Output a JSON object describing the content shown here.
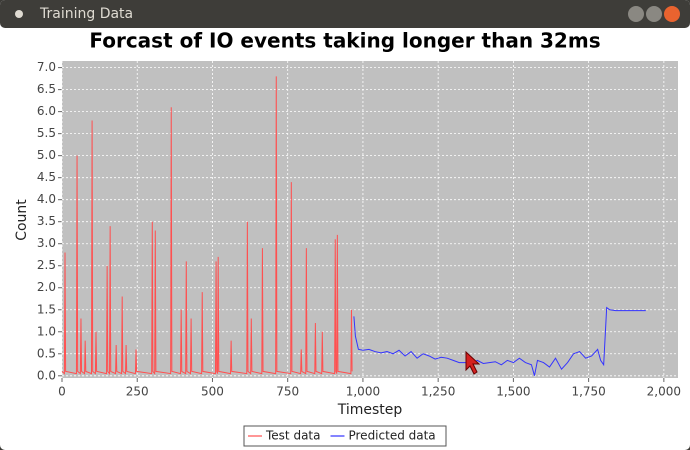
{
  "window": {
    "title": "Training Data"
  },
  "chart_data": {
    "type": "line",
    "title": "Forcast of IO events taking longer than 32ms",
    "xlabel": "Timestep",
    "ylabel": "Count",
    "xlim": [
      0,
      2047
    ],
    "ylim": [
      -0.05,
      7.15
    ],
    "xticks": [
      0,
      250,
      500,
      750,
      {
        "value": 1000,
        "label": "1,000"
      },
      {
        "value": 1250,
        "label": "1,250"
      },
      {
        "value": 1500,
        "label": "1,500"
      },
      {
        "value": 1750,
        "label": "1,750"
      },
      {
        "value": 2000,
        "label": "2,000"
      }
    ],
    "yticks": [
      {
        "value": 0,
        "label": "0.0"
      },
      0.5,
      {
        "value": 1,
        "label": "1.0"
      },
      1.5,
      {
        "value": 2,
        "label": "2.0"
      },
      2.5,
      {
        "value": 3,
        "label": "3.0"
      },
      3.5,
      {
        "value": 4,
        "label": "4.0"
      },
      4.5,
      {
        "value": 5,
        "label": "5.0"
      },
      5.5,
      {
        "value": 6,
        "label": "6.0"
      },
      6.5,
      {
        "value": 7,
        "label": "7.0"
      }
    ],
    "grid": true,
    "legend": "bottom",
    "series": [
      {
        "name": "Test data",
        "color": "#ff5050",
        "x": [
          0,
          8,
          10,
          12,
          48,
          50,
          52,
          61,
          63,
          65,
          75,
          77,
          79,
          98,
          100,
          102,
          111,
          113,
          115,
          148,
          150,
          152,
          158,
          160,
          162,
          178,
          180,
          182,
          198,
          200,
          202,
          211,
          213,
          215,
          244,
          246,
          248,
          298,
          300,
          302,
          308,
          310,
          312,
          361,
          363,
          365,
          394,
          396,
          398,
          411,
          413,
          415,
          427,
          429,
          431,
          464,
          466,
          468,
          510,
          512,
          514,
          517,
          519,
          521,
          560,
          562,
          564,
          614,
          616,
          618,
          627,
          629,
          631,
          664,
          666,
          668,
          710,
          712,
          714,
          760,
          762,
          764,
          793,
          795,
          797,
          810,
          812,
          814,
          840,
          842,
          844,
          863,
          865,
          867,
          906,
          908,
          910,
          913,
          915,
          917,
          960,
          962,
          964
        ],
        "values": [
          0.1,
          0.05,
          2.8,
          0.1,
          0.05,
          5.0,
          0.1,
          0.05,
          1.3,
          0.1,
          0.05,
          0.8,
          0.1,
          0.05,
          5.8,
          0.1,
          0.05,
          1.0,
          0.1,
          0.05,
          2.5,
          0.1,
          0.05,
          3.4,
          0.1,
          0.05,
          0.7,
          0.1,
          0.05,
          1.8,
          0.1,
          0.05,
          0.7,
          0.1,
          0.05,
          0.6,
          0.1,
          0.05,
          3.5,
          0.1,
          0.05,
          3.3,
          0.1,
          0.05,
          6.1,
          0.1,
          0.05,
          1.5,
          0.1,
          0.05,
          2.6,
          0.1,
          0.05,
          1.3,
          0.1,
          0.05,
          1.9,
          0.1,
          0.05,
          2.6,
          0.1,
          0.05,
          2.7,
          0.1,
          0.05,
          0.8,
          0.1,
          0.05,
          3.5,
          0.1,
          0.05,
          1.3,
          0.1,
          0.05,
          2.9,
          0.1,
          0.05,
          6.8,
          0.1,
          0.05,
          4.4,
          0.1,
          0.05,
          0.6,
          0.1,
          0.05,
          2.9,
          0.1,
          0.05,
          1.2,
          0.1,
          0.05,
          1.0,
          0.1,
          0.05,
          3.1,
          0.1,
          0.05,
          3.2,
          0.1,
          0.05,
          1.5,
          0.1
        ]
      },
      {
        "name": "Predicted data",
        "color": "#3333ff",
        "x": [
          970,
          975,
          985,
          1000,
          1020,
          1040,
          1060,
          1080,
          1100,
          1120,
          1140,
          1160,
          1180,
          1200,
          1220,
          1240,
          1260,
          1280,
          1300,
          1320,
          1340,
          1360,
          1380,
          1400,
          1420,
          1440,
          1460,
          1480,
          1500,
          1520,
          1540,
          1560,
          1570,
          1580,
          1600,
          1620,
          1640,
          1660,
          1680,
          1700,
          1720,
          1740,
          1760,
          1780,
          1790,
          1800,
          1810,
          1820,
          1840,
          1880,
          1940
        ],
        "values": [
          1.35,
          0.9,
          0.6,
          0.58,
          0.6,
          0.55,
          0.52,
          0.55,
          0.5,
          0.58,
          0.45,
          0.55,
          0.4,
          0.5,
          0.45,
          0.38,
          0.42,
          0.4,
          0.35,
          0.3,
          0.3,
          0.25,
          0.35,
          0.28,
          0.3,
          0.32,
          0.25,
          0.35,
          0.3,
          0.4,
          0.3,
          0.25,
          0.0,
          0.35,
          0.3,
          0.2,
          0.4,
          0.15,
          0.3,
          0.5,
          0.55,
          0.4,
          0.45,
          0.6,
          0.35,
          0.25,
          1.55,
          1.5,
          1.48,
          1.48,
          1.48
        ]
      }
    ]
  }
}
